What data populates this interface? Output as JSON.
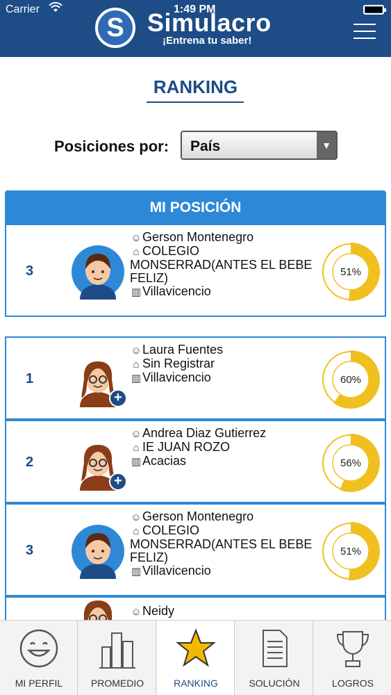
{
  "status_bar": {
    "carrier": "Carrier",
    "time": "1:49 PM"
  },
  "header": {
    "brand": "Simulacro",
    "tagline": "¡Entrena tu saber!",
    "logo_letter": "S"
  },
  "page": {
    "title": "RANKING"
  },
  "filter": {
    "label": "Posiciones por:",
    "value": "País"
  },
  "my_position": {
    "title": "MI POSICIÓN",
    "entry": {
      "position": "3",
      "name": "Gerson Montenegro",
      "school": "COLEGIO MONSERRAD(ANTES EL BEBE FELIZ)",
      "city": "Villavicencio",
      "score_label": "51%",
      "score": 0.51
    }
  },
  "ranking": [
    {
      "position": "1",
      "name": "Laura Fuentes",
      "school": "Sin Registrar",
      "city": "Villavicencio",
      "score_label": "60%",
      "score": 0.6
    },
    {
      "position": "2",
      "name": "Andrea Diaz Gutierrez",
      "school": "IE JUAN ROZO",
      "city": "Acacias",
      "score_label": "56%",
      "score": 0.56
    },
    {
      "position": "3",
      "name": "Gerson Montenegro",
      "school": "COLEGIO MONSERRAD(ANTES EL BEBE FELIZ)",
      "city": "Villavicencio",
      "score_label": "51%",
      "score": 0.51
    },
    {
      "name": "Neidy"
    }
  ],
  "tabs": [
    {
      "label": "MI PERFIL",
      "icon": "smiley-icon"
    },
    {
      "label": "PROMEDIO",
      "icon": "buildings-chart-icon"
    },
    {
      "label": "RANKING",
      "icon": "star-icon"
    },
    {
      "label": "SOLUCIÓN",
      "icon": "document-icon"
    },
    {
      "label": "LOGROS",
      "icon": "trophy-icon"
    }
  ],
  "colors": {
    "header_bg": "#1d4c86",
    "accent_blue": "#2e88d8",
    "donut_fill": "#f0c020",
    "donut_track": "#ffffff"
  }
}
